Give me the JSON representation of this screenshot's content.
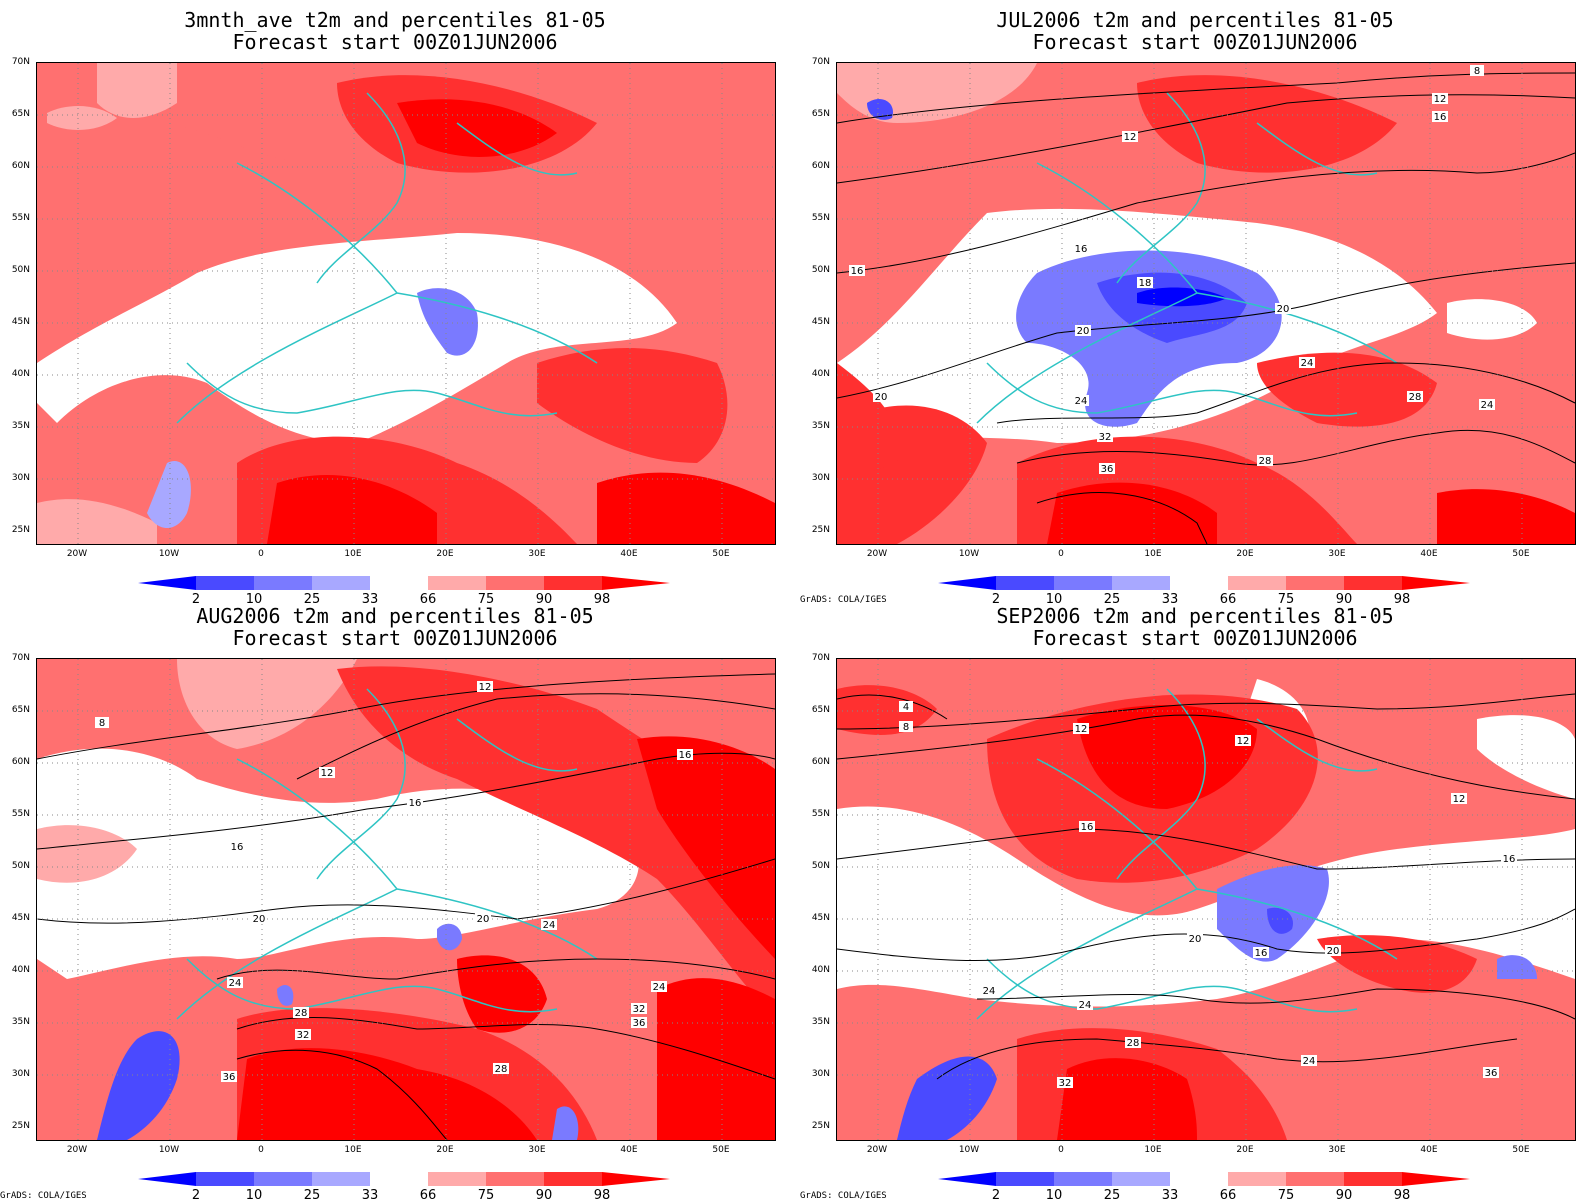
{
  "credit": "GrADS: COLA/IGES",
  "lat_labels": [
    "70N",
    "65N",
    "60N",
    "55N",
    "50N",
    "45N",
    "40N",
    "35N",
    "30N",
    "25N"
  ],
  "lon_labels": [
    "20W",
    "10W",
    "0",
    "10E",
    "20E",
    "30E",
    "40E",
    "50E"
  ],
  "colorbar": {
    "levels": [
      "2",
      "10",
      "25",
      "33",
      "66",
      "75",
      "90",
      "98"
    ],
    "colors": [
      "#0000ff",
      "#4a4aff",
      "#7a7aff",
      "#a8a8ff",
      "#ffffff",
      "#ffaaaa",
      "#ff7070",
      "#ff3030",
      "#ff0000"
    ]
  },
  "panels": [
    {
      "title1": "3mnth_ave t2m and percentiles 81-05",
      "title2": "Forecast start 00Z01JUN2006",
      "contours": []
    },
    {
      "title1": "JUL2006 t2m and percentiles 81-05",
      "title2": "Forecast start 00Z01JUN2006",
      "contours": [
        "8",
        "12",
        "12",
        "16",
        "16",
        "16",
        "18",
        "20",
        "20",
        "20",
        "24",
        "24",
        "24",
        "28",
        "28",
        "32",
        "36"
      ]
    },
    {
      "title1": "AUG2006 t2m and percentiles 81-05",
      "title2": "Forecast start 00Z01JUN2006",
      "contours": [
        "8",
        "12",
        "12",
        "16",
        "16",
        "16",
        "20",
        "20",
        "24",
        "24",
        "24",
        "28",
        "32",
        "36",
        "28",
        "32",
        "36"
      ]
    },
    {
      "title1": "SEP2006 t2m and percentiles 81-05",
      "title2": "Forecast start 00Z01JUN2006",
      "contours": [
        "4",
        "8",
        "12",
        "12",
        "12",
        "16",
        "16",
        "16",
        "20",
        "20",
        "24",
        "24",
        "24",
        "28",
        "32",
        "36"
      ]
    }
  ]
}
